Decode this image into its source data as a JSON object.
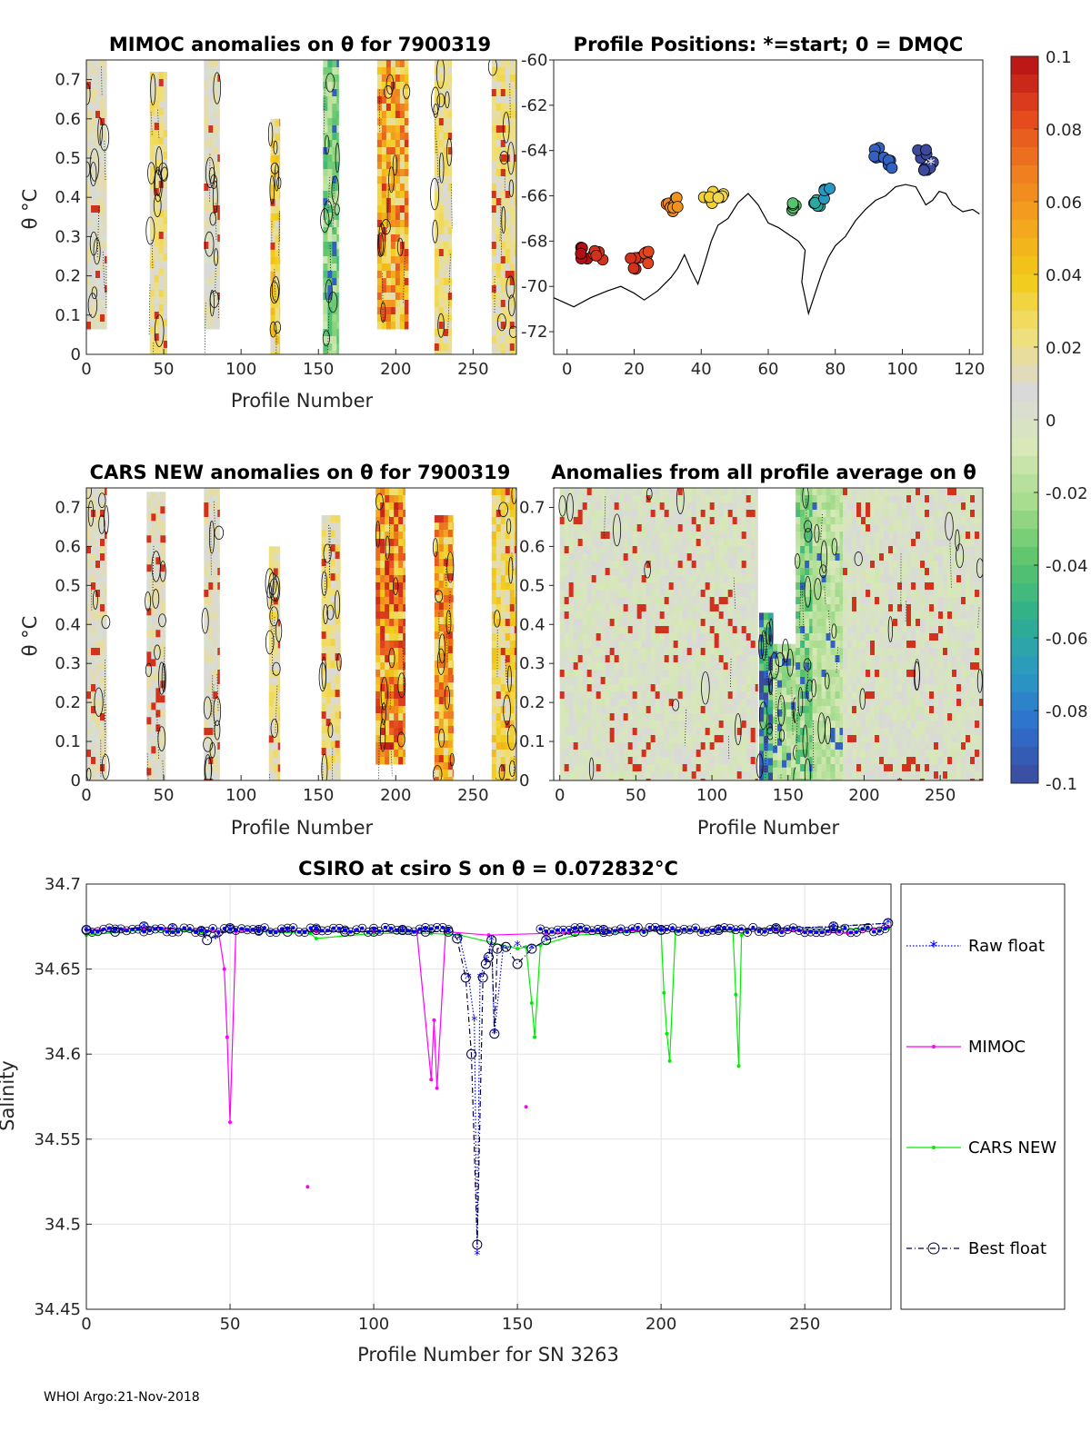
{
  "footer": "WHOI Argo:21-Nov-2018",
  "colors": {
    "raw_float": "#0000ff",
    "mimoc": "#ff00ff",
    "cars_new": "#00ee00",
    "best_float": "#00003c"
  },
  "colorbar": {
    "ticks": [
      "0.1",
      "0.08",
      "0.06",
      "0.04",
      "0.02",
      "0",
      "-0.02",
      "-0.04",
      "-0.06",
      "-0.08",
      "-0.1"
    ],
    "range": [
      -0.1,
      0.1
    ],
    "stops": [
      "#3b4a9c",
      "#2f6fd0",
      "#2a9bc1",
      "#2fb08a",
      "#5cc56b",
      "#a6dc8d",
      "#d8e8b8",
      "#d9d9d9",
      "#f0e07a",
      "#f2cc1a",
      "#f3a51e",
      "#ef7a1f",
      "#e2451e",
      "#b40f14"
    ]
  },
  "chart_data": [
    {
      "id": "mimoc",
      "type": "heatmap",
      "title": "MIMOC anomalies on θ  for 7900319",
      "xlabel": "Profile Number",
      "ylabel": "θ °C",
      "xlim": [
        0,
        278
      ],
      "ylim": [
        0,
        0.75
      ],
      "xticks": [
        "0",
        "50",
        "100",
        "150",
        "200",
        "250"
      ],
      "yticks": [
        "0",
        "0.1",
        "0.2",
        "0.3",
        "0.4",
        "0.5",
        "0.6",
        "0.7"
      ],
      "bands": [
        {
          "x0": 0,
          "x1": 13,
          "ymin": 0.08,
          "ymax": 0.75,
          "anomaly": 0.01
        },
        {
          "x0": 41,
          "x1": 52,
          "ymin": 0.0,
          "ymax": 0.72,
          "anomaly": 0.02
        },
        {
          "x0": 76,
          "x1": 86,
          "ymin": 0.08,
          "ymax": 0.75,
          "anomaly": 0.01
        },
        {
          "x0": 119,
          "x1": 125,
          "ymin": 0.0,
          "ymax": 0.6,
          "anomaly": 0.03
        },
        {
          "x0": 153,
          "x1": 163,
          "ymin": 0.0,
          "ymax": 0.75,
          "anomaly": -0.03
        },
        {
          "x0": 188,
          "x1": 208,
          "ymin": 0.07,
          "ymax": 0.75,
          "anomaly": 0.05
        },
        {
          "x0": 225,
          "x1": 236,
          "ymin": 0.0,
          "ymax": 0.75,
          "anomaly": 0.02
        },
        {
          "x0": 262,
          "x1": 278,
          "ymin": 0.0,
          "ymax": 0.75,
          "anomaly": 0.02
        }
      ]
    },
    {
      "id": "positions",
      "type": "scatter",
      "title": "Profile Positions: *=start; 0 = DMQC",
      "xlim": [
        -4,
        124
      ],
      "ylim": [
        -73,
        -60
      ],
      "xticks": [
        "0",
        "20",
        "40",
        "60",
        "80",
        "100",
        "120"
      ],
      "yticks": [
        "-60",
        "-62",
        "-64",
        "-66",
        "-68",
        "-70",
        "-72"
      ],
      "clusters": [
        {
          "x": 5,
          "y": -68.5,
          "anomaly": 0.1
        },
        {
          "x": 9,
          "y": -68.6,
          "anomaly": 0.09
        },
        {
          "x": 20,
          "y": -69.0,
          "anomaly": 0.09
        },
        {
          "x": 23,
          "y": -68.7,
          "anomaly": 0.085
        },
        {
          "x": 31,
          "y": -66.6,
          "anomaly": 0.065
        },
        {
          "x": 32,
          "y": -66.3,
          "anomaly": 0.06
        },
        {
          "x": 42,
          "y": -66.1,
          "anomaly": 0.035
        },
        {
          "x": 46,
          "y": -65.9,
          "anomaly": 0.03
        },
        {
          "x": 67,
          "y": -66.6,
          "anomaly": -0.04
        },
        {
          "x": 75,
          "y": -66.3,
          "anomaly": -0.06
        },
        {
          "x": 78,
          "y": -65.9,
          "anomaly": -0.07
        },
        {
          "x": 93,
          "y": -64.1,
          "anomaly": -0.09
        },
        {
          "x": 96,
          "y": -64.5,
          "anomaly": -0.09
        },
        {
          "x": 106,
          "y": -64.2,
          "anomaly": -0.1
        },
        {
          "x": 108,
          "y": -64.6,
          "anomaly": -0.1
        }
      ],
      "coastline": [
        [
          -4,
          -70.5
        ],
        [
          2,
          -70.9
        ],
        [
          7,
          -70.5
        ],
        [
          12,
          -70.2
        ],
        [
          16,
          -70.0
        ],
        [
          20,
          -70.3
        ],
        [
          23,
          -70.6
        ],
        [
          27,
          -70.2
        ],
        [
          31,
          -69.6
        ],
        [
          33,
          -69.2
        ],
        [
          35,
          -68.6
        ],
        [
          37,
          -69.3
        ],
        [
          39,
          -69.9
        ],
        [
          41,
          -69.0
        ],
        [
          43,
          -68.0
        ],
        [
          45,
          -67.3
        ],
        [
          48,
          -67.0
        ],
        [
          51,
          -66.3
        ],
        [
          54,
          -65.9
        ],
        [
          57,
          -66.4
        ],
        [
          60,
          -67.2
        ],
        [
          63,
          -67.4
        ],
        [
          66,
          -67.7
        ],
        [
          69,
          -68.0
        ],
        [
          71,
          -68.4
        ],
        [
          70,
          -69.8
        ],
        [
          72,
          -71.2
        ],
        [
          74,
          -70.3
        ],
        [
          76,
          -69.4
        ],
        [
          78,
          -68.7
        ],
        [
          80,
          -68.2
        ],
        [
          83,
          -67.8
        ],
        [
          86,
          -67.1
        ],
        [
          89,
          -66.6
        ],
        [
          92,
          -66.2
        ],
        [
          95,
          -66.0
        ],
        [
          98,
          -65.6
        ],
        [
          101,
          -65.5
        ],
        [
          104,
          -65.6
        ],
        [
          107,
          -66.4
        ],
        [
          109,
          -66.2
        ],
        [
          111,
          -65.8
        ],
        [
          113,
          -65.9
        ],
        [
          115,
          -66.4
        ],
        [
          118,
          -66.7
        ],
        [
          121,
          -66.6
        ],
        [
          123,
          -66.8
        ]
      ]
    },
    {
      "id": "cars",
      "type": "heatmap",
      "title": "CARS NEW anomalies on θ for 7900319",
      "xlabel": "Profile Number",
      "ylabel": "θ °C",
      "xlim": [
        0,
        278
      ],
      "ylim": [
        0,
        0.75
      ],
      "xticks": [
        "0",
        "50",
        "100",
        "150",
        "200",
        "250"
      ],
      "yticks": [
        "0",
        "0.1",
        "0.2",
        "0.3",
        "0.4",
        "0.5",
        "0.6",
        "0.7"
      ],
      "bands": [
        {
          "x0": 0,
          "x1": 13,
          "ymin": 0.0,
          "ymax": 0.75,
          "anomaly": 0.01
        },
        {
          "x0": 39,
          "x1": 51,
          "ymin": 0.0,
          "ymax": 0.74,
          "anomaly": 0.01
        },
        {
          "x0": 76,
          "x1": 86,
          "ymin": 0.0,
          "ymax": 0.75,
          "anomaly": 0.01
        },
        {
          "x0": 118,
          "x1": 125,
          "ymin": 0.0,
          "ymax": 0.6,
          "anomaly": 0.02
        },
        {
          "x0": 152,
          "x1": 164,
          "ymin": 0.0,
          "ymax": 0.68,
          "anomaly": 0.02
        },
        {
          "x0": 187,
          "x1": 206,
          "ymin": 0.06,
          "ymax": 0.75,
          "anomaly": 0.06
        },
        {
          "x0": 225,
          "x1": 237,
          "ymin": 0.0,
          "ymax": 0.68,
          "anomaly": 0.05
        },
        {
          "x0": 262,
          "x1": 278,
          "ymin": 0.0,
          "ymax": 0.75,
          "anomaly": 0.03
        }
      ]
    },
    {
      "id": "allavg",
      "type": "heatmap",
      "title": "Anomalies from all profile average on θ",
      "xlabel": "Profile Number",
      "xlim": [
        -4,
        278
      ],
      "ylim": [
        0,
        0.75
      ],
      "xticks": [
        "0",
        "50",
        "100",
        "150",
        "200",
        "250"
      ],
      "yticks": [
        "0",
        "0.1",
        "0.2",
        "0.3",
        "0.4",
        "0.5",
        "0.6",
        "0.7"
      ],
      "bands": [
        {
          "x0": 0,
          "x1": 130,
          "ymin": 0.0,
          "ymax": 0.75,
          "anomaly": 0.0
        },
        {
          "x0": 131,
          "x1": 140,
          "ymin": 0.0,
          "ymax": 0.43,
          "anomaly": -0.08
        },
        {
          "x0": 140,
          "x1": 156,
          "ymin": 0.0,
          "ymax": 0.35,
          "anomaly": -0.02
        },
        {
          "x0": 155,
          "x1": 166,
          "ymin": 0.0,
          "ymax": 0.75,
          "anomaly": -0.03
        },
        {
          "x0": 166,
          "x1": 186,
          "ymin": 0.0,
          "ymax": 0.75,
          "anomaly": -0.015
        },
        {
          "x0": 186,
          "x1": 278,
          "ymin": 0.0,
          "ymax": 0.75,
          "anomaly": 0.0
        }
      ]
    },
    {
      "id": "salinity",
      "type": "line",
      "title": "CSIRO at csiro S on θ = 0.072832°C",
      "xlabel": "Profile Number for SN 3263",
      "ylabel": "Salinity",
      "xlim": [
        0,
        280
      ],
      "ylim": [
        34.45,
        34.7
      ],
      "xticks": [
        "0",
        "50",
        "100",
        "150",
        "200",
        "250"
      ],
      "yticks": [
        "34.45",
        "34.5",
        "34.55",
        "34.6",
        "34.65",
        "34.7"
      ],
      "series": [
        {
          "name": "Raw float",
          "style": "dotted-star",
          "x": [
            0,
            10,
            20,
            30,
            40,
            45,
            50,
            60,
            70,
            80,
            90,
            100,
            110,
            118,
            126,
            130,
            133,
            135,
            136,
            137,
            139,
            141,
            142,
            145,
            150,
            155,
            160,
            170,
            180,
            200,
            220,
            240,
            260,
            279
          ],
          "y": [
            34.673,
            34.672,
            34.675,
            34.674,
            34.672,
            34.668,
            34.674,
            34.673,
            34.672,
            34.673,
            34.672,
            34.672,
            34.673,
            34.672,
            34.672,
            34.668,
            34.645,
            34.62,
            34.482,
            34.645,
            34.655,
            34.667,
            34.612,
            34.662,
            34.664,
            34.662,
            34.667,
            34.672,
            34.673,
            34.673,
            34.673,
            34.674,
            34.675,
            34.677
          ]
        },
        {
          "name": "MIMOC",
          "style": "line-dot",
          "x": [
            0,
            20,
            40,
            46,
            48,
            49,
            50,
            52,
            60,
            80,
            100,
            115,
            120,
            121,
            122,
            125,
            140,
            160,
            200,
            240,
            265,
            279
          ],
          "y": [
            34.673,
            34.674,
            34.673,
            34.672,
            34.65,
            34.61,
            34.56,
            34.672,
            34.673,
            34.672,
            34.672,
            34.672,
            34.585,
            34.62,
            34.58,
            34.672,
            34.67,
            34.671,
            34.673,
            34.673,
            34.671,
            34.675
          ],
          "extra_points": [
            [
              77,
              34.522
            ],
            [
              153,
              34.569
            ]
          ]
        },
        {
          "name": "CARS NEW",
          "style": "line-dot",
          "x": [
            0,
            20,
            40,
            60,
            78,
            80,
            100,
            120,
            130,
            150,
            153,
            155,
            156,
            158,
            170,
            195,
            200,
            201,
            202,
            203,
            205,
            225,
            226,
            227,
            228,
            230,
            260,
            279
          ],
          "y": [
            34.67,
            34.673,
            34.672,
            34.672,
            34.671,
            34.668,
            34.671,
            34.671,
            34.67,
            34.662,
            34.663,
            34.63,
            34.61,
            34.664,
            34.67,
            34.672,
            34.673,
            34.636,
            34.612,
            34.596,
            34.672,
            34.672,
            34.635,
            34.593,
            34.67,
            34.673,
            34.673,
            34.674
          ]
        },
        {
          "name": "Best float",
          "style": "dashdot-circle",
          "x": [
            0,
            10,
            20,
            30,
            40,
            42,
            50,
            60,
            70,
            80,
            90,
            100,
            110,
            118,
            126,
            129,
            132,
            134,
            136,
            138,
            139,
            140,
            141,
            142,
            143,
            146,
            150,
            155,
            160,
            170,
            180,
            200,
            220,
            240,
            260,
            279
          ],
          "y": [
            34.673,
            34.672,
            34.675,
            34.674,
            34.672,
            34.667,
            34.674,
            34.673,
            34.672,
            34.673,
            34.672,
            34.672,
            34.673,
            34.672,
            34.672,
            34.668,
            34.645,
            34.6,
            34.488,
            34.645,
            34.653,
            34.657,
            34.667,
            34.612,
            34.662,
            34.663,
            34.653,
            34.662,
            34.667,
            34.672,
            34.673,
            34.673,
            34.673,
            34.674,
            34.675,
            34.677
          ]
        }
      ],
      "legend": [
        "Raw float",
        "MIMOC",
        "CARS NEW",
        "Best float"
      ]
    }
  ]
}
